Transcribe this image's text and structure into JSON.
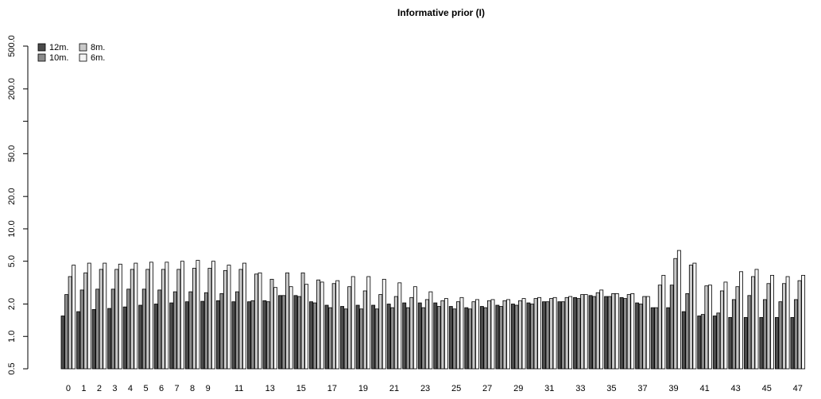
{
  "chart_data": {
    "type": "bar",
    "title": "Informative prior (I)",
    "xlabel": "",
    "ylabel": "",
    "y_scale": "log",
    "ylim": [
      0.5,
      500
    ],
    "y_ticks": [
      0.5,
      1.0,
      2.0,
      5.0,
      10.0,
      20.0,
      50.0,
      200.0,
      500.0
    ],
    "y_tick_labels": [
      "0.5",
      "1.0",
      "2.0",
      "5.0",
      "10.0",
      "20.0",
      "50.0",
      "200.0",
      "500.0"
    ],
    "y_minor_ticks": [
      100.0
    ],
    "grid": false,
    "legend_position": "top-left",
    "categories": [
      "0",
      "1",
      "2",
      "3",
      "4",
      "5",
      "6",
      "7",
      "8",
      "9",
      "10",
      "11",
      "12",
      "13",
      "14",
      "15",
      "16",
      "17",
      "18",
      "19",
      "20",
      "21",
      "22",
      "23",
      "24",
      "25",
      "26",
      "27",
      "28",
      "29",
      "30",
      "31",
      "32",
      "33",
      "34",
      "35",
      "36",
      "37",
      "38",
      "39",
      "40",
      "41",
      "42",
      "43",
      "44",
      "45",
      "46",
      "47"
    ],
    "x_tick_labels_shown": [
      "0",
      "1",
      "2",
      "3",
      "4",
      "5",
      "6",
      "7",
      "8",
      "9",
      "11",
      "13",
      "15",
      "17",
      "19",
      "21",
      "23",
      "25",
      "27",
      "29",
      "31",
      "33",
      "35",
      "37",
      "39",
      "41",
      "43",
      "45",
      "47"
    ],
    "series": [
      {
        "name": "12m.",
        "color": "#4a4a4a",
        "values": [
          1.55,
          1.7,
          1.78,
          1.82,
          1.88,
          1.95,
          2.0,
          2.05,
          2.1,
          2.12,
          2.15,
          2.1,
          2.1,
          2.15,
          2.4,
          2.4,
          2.1,
          1.95,
          1.9,
          1.95,
          1.95,
          2.0,
          2.05,
          2.05,
          2.05,
          1.9,
          1.85,
          1.9,
          1.95,
          2.0,
          2.05,
          2.1,
          2.1,
          2.3,
          2.4,
          2.35,
          2.3,
          2.05,
          1.85,
          1.85,
          1.7,
          1.55,
          1.55,
          1.5,
          1.5,
          1.5,
          1.5,
          1.5
        ]
      },
      {
        "name": "10m.",
        "color": "#8a8a8a",
        "values": [
          2.45,
          2.7,
          2.75,
          2.75,
          2.75,
          2.75,
          2.7,
          2.6,
          2.6,
          2.55,
          2.5,
          2.6,
          2.15,
          2.1,
          2.4,
          2.35,
          2.05,
          1.85,
          1.8,
          1.8,
          1.8,
          1.85,
          1.85,
          1.85,
          1.9,
          1.8,
          1.8,
          1.85,
          1.9,
          1.95,
          2.0,
          2.1,
          2.1,
          2.25,
          2.35,
          2.35,
          2.25,
          2.0,
          1.85,
          3.0,
          2.5,
          1.6,
          1.65,
          2.2,
          2.4,
          2.2,
          2.1,
          2.2
        ]
      },
      {
        "name": "8m.",
        "color": "#c8c8c8",
        "values": [
          3.6,
          3.9,
          4.2,
          4.2,
          4.2,
          4.2,
          4.2,
          4.2,
          4.3,
          4.3,
          4.1,
          4.2,
          3.8,
          3.4,
          3.9,
          3.9,
          3.35,
          3.1,
          2.9,
          2.65,
          2.45,
          2.35,
          2.3,
          2.2,
          2.15,
          2.1,
          2.1,
          2.15,
          2.15,
          2.15,
          2.25,
          2.25,
          2.3,
          2.45,
          2.55,
          2.5,
          2.45,
          2.35,
          3.0,
          5.3,
          4.6,
          2.95,
          2.65,
          2.9,
          3.6,
          3.1,
          3.1,
          3.3
        ]
      },
      {
        "name": "6m.",
        "color": "#f4f4f4",
        "values": [
          4.6,
          4.8,
          4.8,
          4.7,
          4.8,
          4.9,
          4.9,
          5.0,
          5.1,
          5.0,
          4.6,
          4.8,
          3.9,
          2.85,
          2.9,
          3.05,
          3.2,
          3.3,
          3.6,
          3.6,
          3.4,
          3.15,
          2.9,
          2.6,
          2.25,
          2.3,
          2.2,
          2.2,
          2.2,
          2.25,
          2.3,
          2.3,
          2.35,
          2.45,
          2.7,
          2.5,
          2.5,
          2.35,
          3.7,
          6.3,
          4.8,
          3.0,
          3.2,
          4.0,
          4.2,
          3.7,
          3.6,
          3.7
        ]
      }
    ]
  }
}
